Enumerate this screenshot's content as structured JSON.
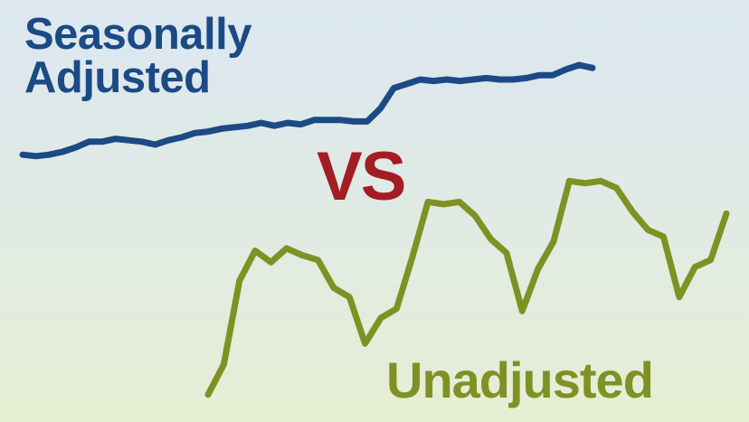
{
  "labels": {
    "seasonally_adjusted_line1": "Seasonally",
    "seasonally_adjusted_line2": "Adjusted",
    "vs": "VS",
    "unadjusted": "Unadjusted"
  },
  "colors": {
    "seasonally_adjusted": "#1b4a84",
    "unadjusted": "#7e9224",
    "vs": "#a31d24"
  },
  "chart_data": {
    "type": "line",
    "grid": false,
    "legend": "none",
    "series": [
      {
        "name": "Seasonally Adjusted",
        "values": [
          18,
          17,
          18,
          20,
          23,
          27,
          27,
          29,
          28,
          27,
          25,
          28,
          30,
          33,
          34,
          36,
          37,
          38,
          40,
          38,
          40,
          39,
          42,
          42,
          42,
          41,
          41,
          50,
          64,
          67,
          70,
          69,
          70,
          69,
          70,
          71,
          70,
          70,
          71,
          73,
          73,
          77,
          80,
          78
        ],
        "color": "#1b4a84"
      },
      {
        "name": "Unadjusted",
        "values": [
          4,
          17,
          53,
          66,
          61,
          67,
          64,
          62,
          50,
          46,
          26,
          37,
          41,
          63,
          87,
          86,
          87,
          81,
          71,
          65,
          40,
          58,
          70,
          96,
          95,
          96,
          93,
          83,
          75,
          72,
          46,
          59,
          62,
          82
        ]
      }
    ]
  }
}
